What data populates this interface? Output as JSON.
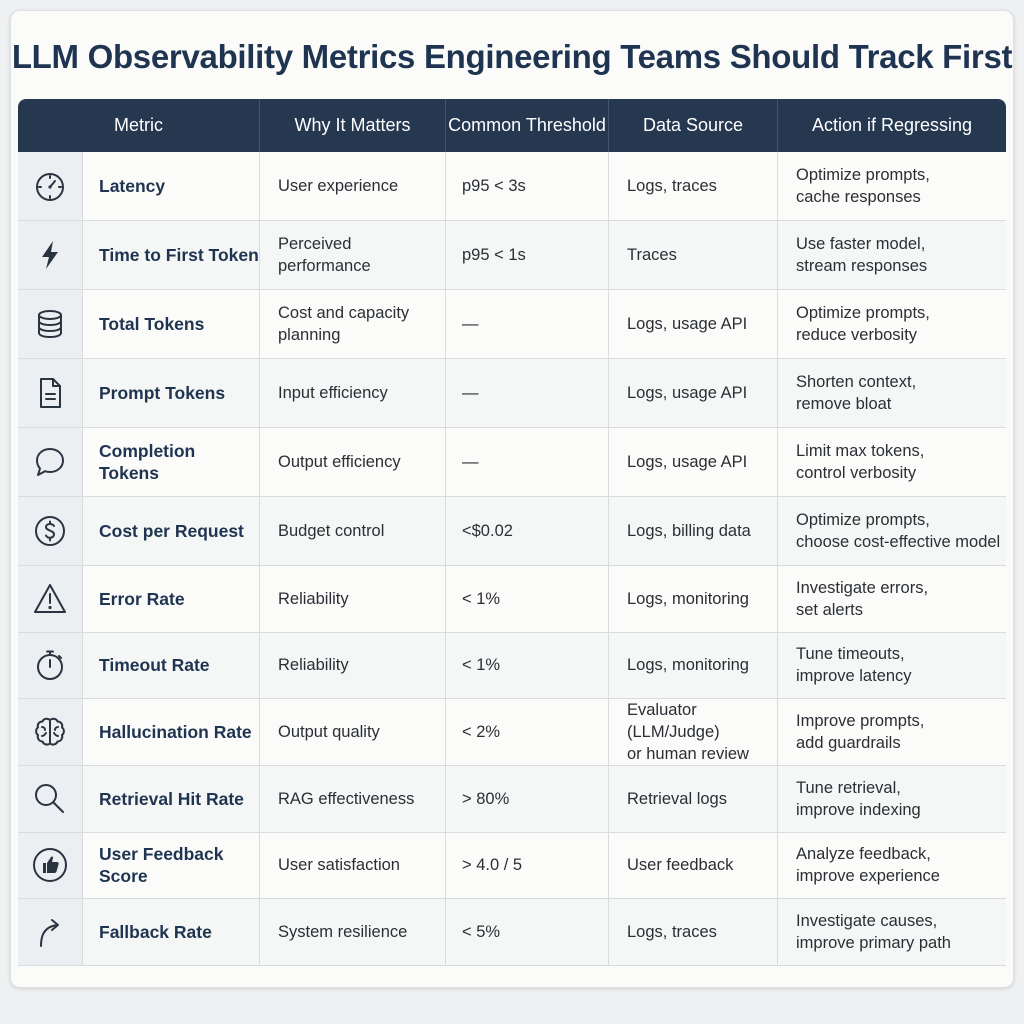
{
  "title": "LLM Observability Metrics Engineering Teams Should Track First",
  "headers": [
    "Metric",
    "Why It Matters",
    "Common Threshold",
    "Data Source",
    "Action if Regressing"
  ],
  "rows": [
    {
      "icon": "stopwatch-icon",
      "metric": "Latency",
      "why": "User experience",
      "threshold": "p95 < 3s",
      "source": "Logs, traces",
      "action": [
        "Optimize prompts,",
        "cache responses"
      ]
    },
    {
      "icon": "lightning-bolt-icon",
      "metric": "Time to First Token",
      "why": "Perceived performance",
      "threshold": "p95 < 1s",
      "source": "Traces",
      "action": [
        "Use faster model,",
        "stream responses"
      ]
    },
    {
      "icon": "database-icon",
      "metric": "Total Tokens",
      "why": [
        "Cost and capacity",
        "planning"
      ],
      "threshold": "—",
      "source": "Logs, usage API",
      "action": [
        "Optimize prompts,",
        "reduce verbosity"
      ]
    },
    {
      "icon": "document-icon",
      "metric": "Prompt Tokens",
      "why": "Input efficiency",
      "threshold": "—",
      "source": "Logs, usage API",
      "action": [
        "Shorten context,",
        "remove bloat"
      ]
    },
    {
      "icon": "speech-bubble-icon",
      "metric": "Completion Tokens",
      "why": "Output efficiency",
      "threshold": "—",
      "source": "Logs, usage API",
      "action": [
        "Limit max tokens,",
        "control verbosity"
      ]
    },
    {
      "icon": "dollar-icon",
      "metric": "Cost per Request",
      "why": "Budget control",
      "threshold": "<$0.02",
      "source": "Logs, billing data",
      "action": [
        "Optimize prompts,",
        "choose cost-effective model"
      ]
    },
    {
      "icon": "warning-icon",
      "metric": "Error Rate",
      "why": "Reliability",
      "threshold": "< 1%",
      "source": "Logs, monitoring",
      "action": [
        "Investigate errors,",
        "set alerts"
      ]
    },
    {
      "icon": "timer-icon",
      "metric": "Timeout Rate",
      "why": "Reliability",
      "threshold": "< 1%",
      "source": "Logs, monitoring",
      "action": [
        "Tune timeouts,",
        "improve latency"
      ]
    },
    {
      "icon": "brain-icon",
      "metric": "Hallucination Rate",
      "why": "Output quality",
      "threshold": "< 2%",
      "source": [
        "Evaluator (LLM/Judge)",
        "or human review"
      ],
      "action": [
        "Improve prompts,",
        "add guardrails"
      ]
    },
    {
      "icon": "magnifier-icon",
      "metric": "Retrieval Hit Rate",
      "why": "RAG effectiveness",
      "threshold": "> 80%",
      "source": "Retrieval logs",
      "action": [
        "Tune retrieval,",
        "improve indexing"
      ]
    },
    {
      "icon": "thumbs-up-icon",
      "metric": "User Feedback Score",
      "why": "User satisfaction",
      "threshold": "> 4.0 / 5",
      "source": "User feedback",
      "action": [
        "Analyze feedback,",
        "improve experience"
      ]
    },
    {
      "icon": "fallback-arrow-icon",
      "metric": "Fallback Rate",
      "why": "System resilience",
      "threshold": "< 5%",
      "source": "Logs, traces",
      "action": [
        "Investigate causes,",
        "improve primary path"
      ]
    }
  ]
}
